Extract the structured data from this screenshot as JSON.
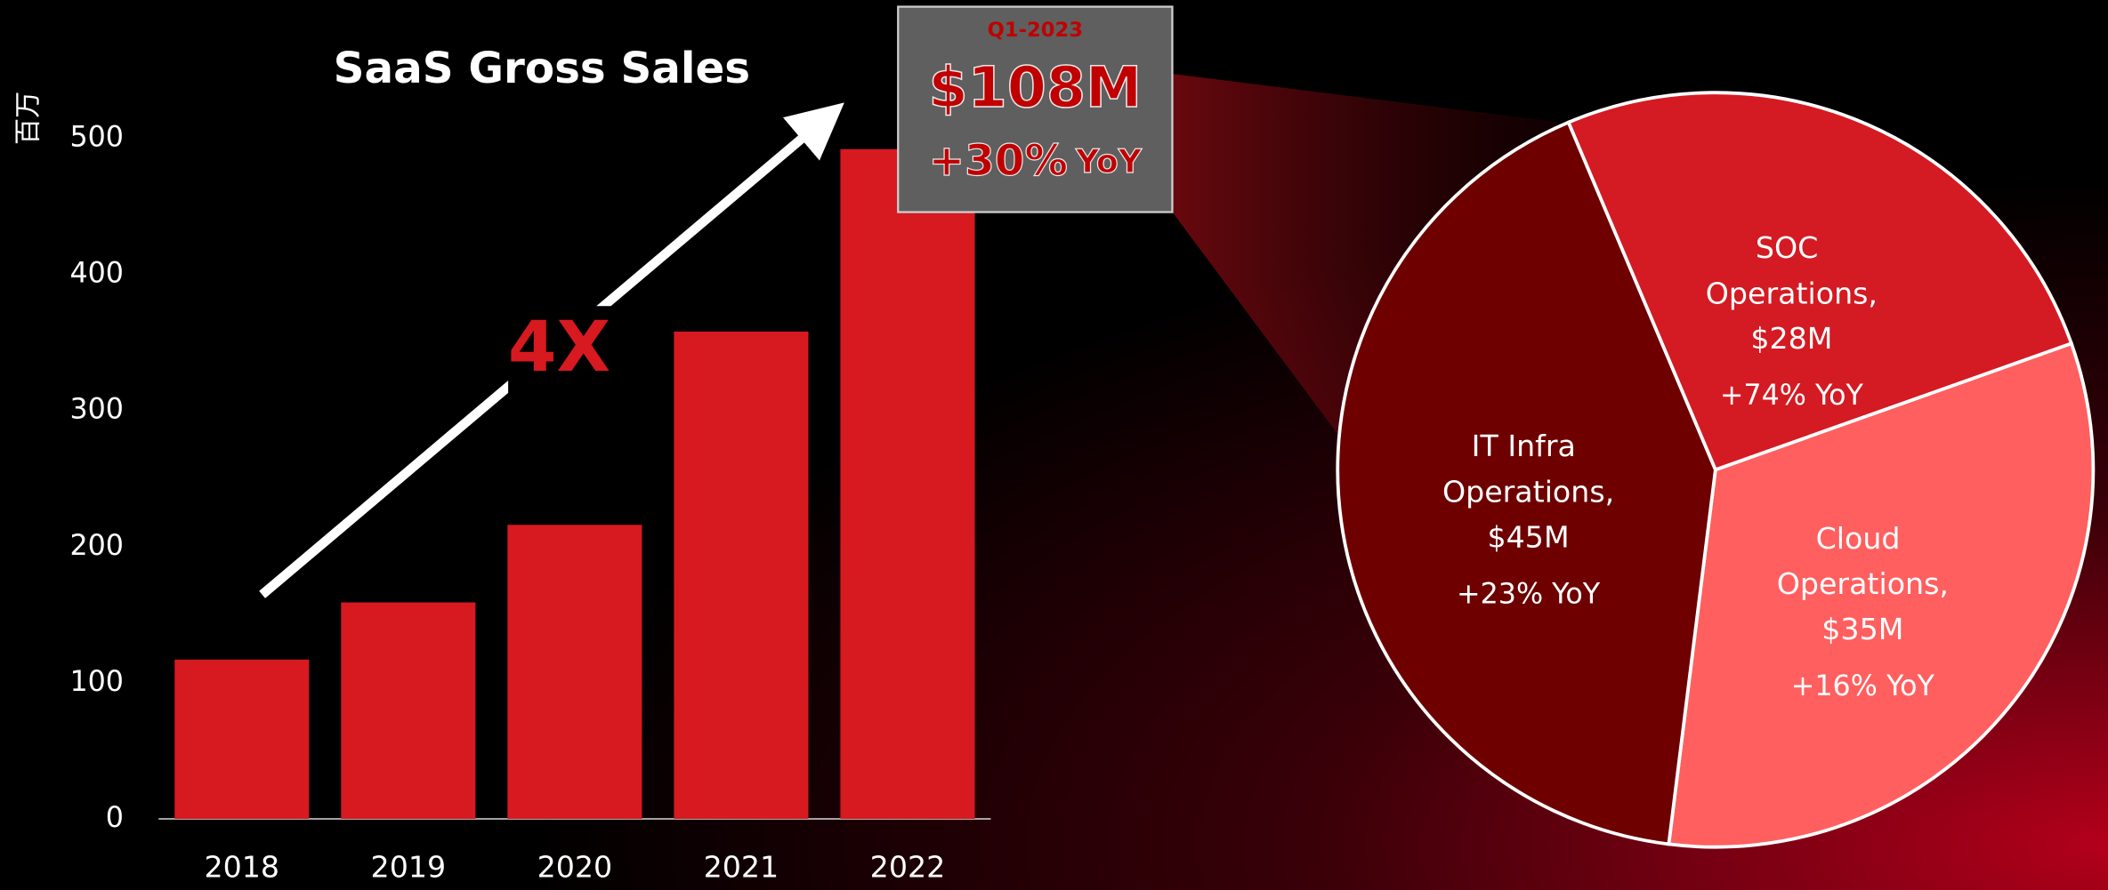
{
  "chart_data": [
    {
      "type": "bar",
      "title": "SaaS Gross Sales",
      "y_label": "百万",
      "categories": [
        "2018",
        "2019",
        "2020",
        "2021",
        "2022"
      ],
      "values": [
        117,
        159,
        216,
        358,
        492
      ],
      "color": "#d71920",
      "ylim": [
        0,
        500
      ],
      "yticks": [
        0,
        100,
        200,
        300,
        400,
        500
      ],
      "annotation": "4X",
      "callout": {
        "period": "Q1-2023",
        "value": "$108M",
        "growth": "+30%",
        "growth_unit": "YoY"
      }
    },
    {
      "type": "pie",
      "categories": [
        "SOC Operations,",
        "Cloud Operations,",
        "IT Infra Operations,"
      ],
      "values": [
        28,
        35,
        45
      ],
      "value_labels": [
        "$28M",
        "$35M",
        "$45M"
      ],
      "growth": [
        "+74% YoY",
        "+16% YoY",
        "+23% YoY"
      ],
      "colors": [
        "#d41a22",
        "#ff5f5f",
        "#6e0000"
      ]
    }
  ]
}
